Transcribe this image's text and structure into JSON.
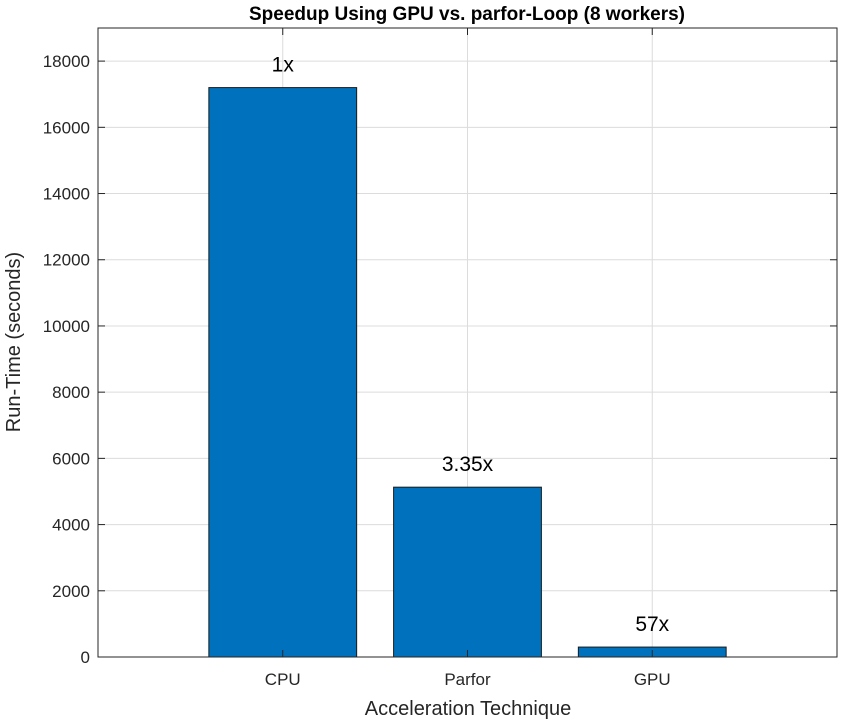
{
  "chart_data": {
    "type": "bar",
    "title": "Speedup Using GPU vs. parfor-Loop (8 workers)",
    "xlabel": "Acceleration Technique",
    "ylabel": "Run-Time (seconds)",
    "categories": [
      "CPU",
      "Parfor",
      "GPU"
    ],
    "values": [
      17200,
      5130,
      300
    ],
    "data_labels": [
      "1x",
      "3.35x",
      "57x"
    ],
    "ylim": [
      0,
      19000
    ],
    "yticks": [
      0,
      2000,
      4000,
      6000,
      8000,
      10000,
      12000,
      14000,
      16000,
      18000
    ],
    "xlim": [
      0,
      4
    ],
    "grid": true,
    "bar_color": "#0072BD"
  }
}
